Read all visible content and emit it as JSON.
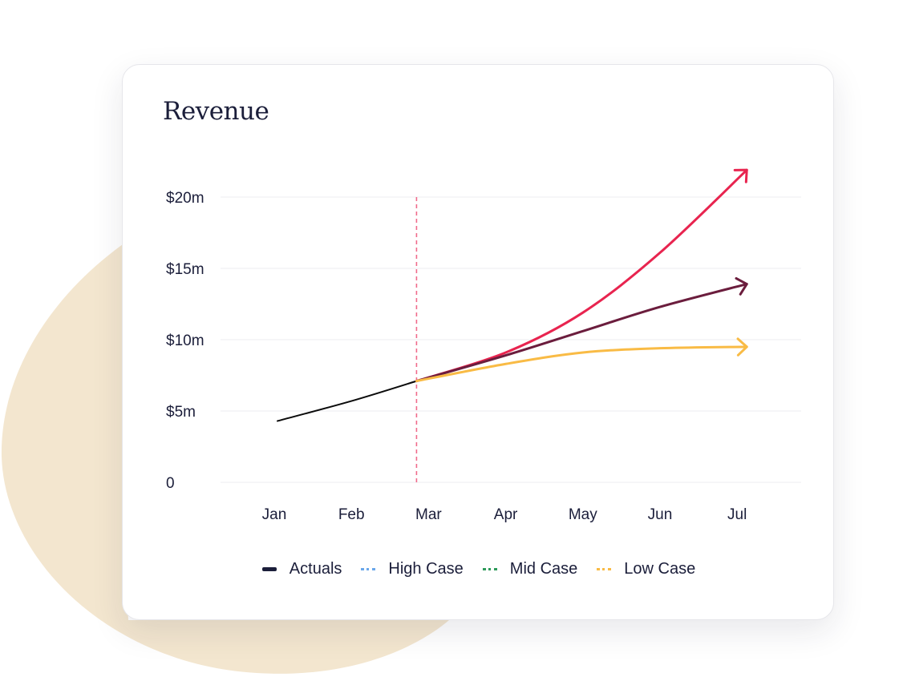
{
  "card": {
    "title": "Revenue"
  },
  "colors": {
    "background_blob": "#f3e6cf",
    "grid": "#ececf0",
    "axis_text": "#1b1e3a",
    "marker_line": "#f06b8c",
    "actuals": "#0b0b0b",
    "high_case_line": "#e8244f",
    "mid_case_line": "#6b1d3d",
    "low_case_line": "#f9bb45"
  },
  "chart_data": {
    "type": "line",
    "title": "Revenue",
    "categories": [
      "Jan",
      "Feb",
      "Mar",
      "Apr",
      "May",
      "Jun",
      "Jul"
    ],
    "yticks": [
      {
        "value": 0,
        "label": "0"
      },
      {
        "value": 5,
        "label": "$5m"
      },
      {
        "value": 10,
        "label": "$10m"
      },
      {
        "value": 15,
        "label": "$15m"
      },
      {
        "value": 20,
        "label": "$20m"
      }
    ],
    "ylim": [
      0,
      20
    ],
    "grid": true,
    "marker_category": "Mar",
    "legend_position": "bottom",
    "series": [
      {
        "name": "Actuals",
        "key": "actuals",
        "values": [
          4.3,
          5.7,
          7.1,
          null,
          null,
          null,
          null
        ]
      },
      {
        "name": "High Case",
        "key": "high",
        "values": [
          null,
          null,
          7.1,
          9.1,
          11.9,
          16.1,
          21.9
        ]
      },
      {
        "name": "Mid Case",
        "key": "mid",
        "values": [
          null,
          null,
          7.1,
          8.9,
          10.6,
          12.3,
          13.9
        ]
      },
      {
        "name": "Low Case",
        "key": "low",
        "values": [
          null,
          null,
          7.1,
          8.3,
          9.1,
          9.4,
          9.5
        ]
      }
    ],
    "legend": [
      {
        "name": "Actuals",
        "color": "#1b1e3a",
        "style": "solid"
      },
      {
        "name": "High Case",
        "color": "#6aa7ea",
        "style": "dotted"
      },
      {
        "name": "Mid Case",
        "color": "#2e9a5a",
        "style": "dotted"
      },
      {
        "name": "Low Case",
        "color": "#f9bb45",
        "style": "dotted"
      }
    ]
  }
}
